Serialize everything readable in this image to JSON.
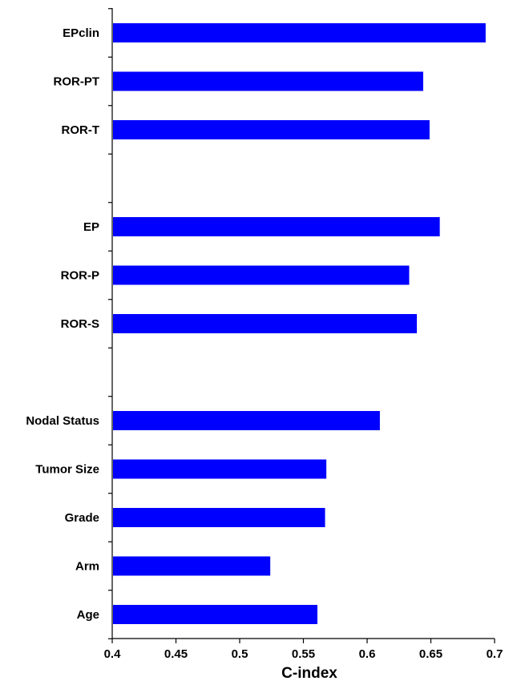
{
  "chart_data": {
    "type": "bar",
    "orientation": "horizontal",
    "categories": [
      "EPclin",
      "ROR-PT",
      "ROR-T",
      "",
      "EP",
      "ROR-P",
      "ROR-S",
      "",
      "Nodal Status",
      "Tumor Size",
      "Grade",
      "Arm",
      "Age"
    ],
    "values": [
      0.693,
      0.644,
      0.649,
      null,
      0.657,
      0.633,
      0.639,
      null,
      0.61,
      0.568,
      0.567,
      0.524,
      0.561
    ],
    "xlabel": "C-index",
    "ylabel": "",
    "xlim": [
      0.4,
      0.7
    ],
    "xticks": [
      "0.4",
      "0.45",
      "0.5",
      "0.55",
      "0.6",
      "0.65",
      "0.7"
    ],
    "bar_color": "#0000FF",
    "grid": false,
    "legend": "none"
  }
}
